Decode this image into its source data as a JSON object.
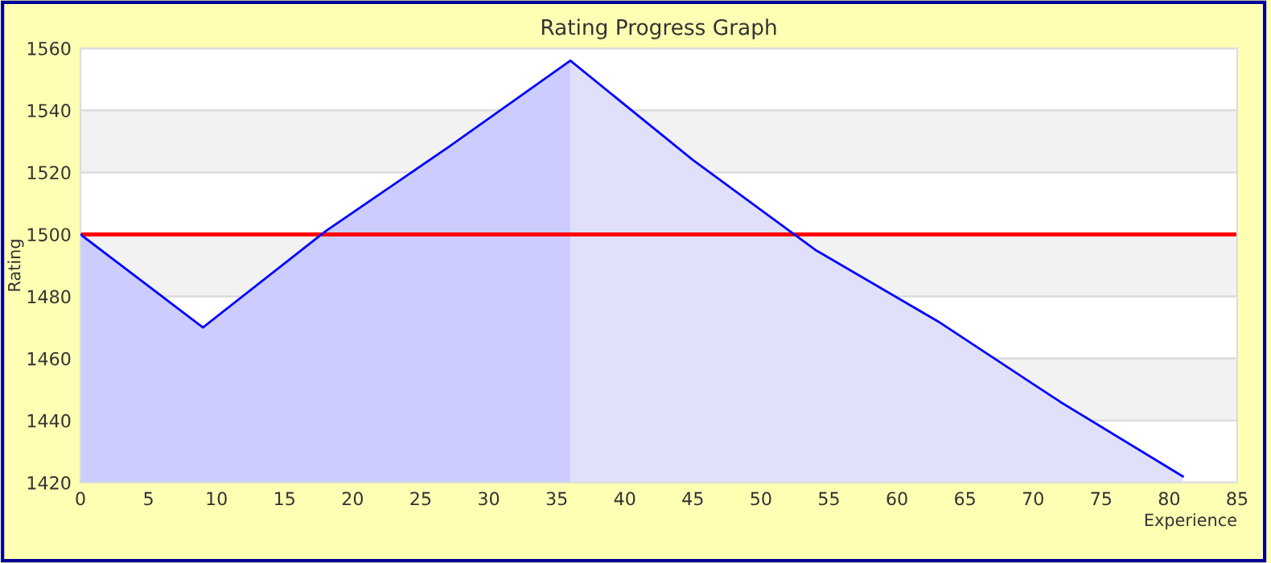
{
  "chart_data": {
    "type": "line",
    "title": "Rating Progress Graph",
    "xlabel": "Experience",
    "ylabel": "Rating",
    "series": [
      {
        "type": "area",
        "color": "#ccccff",
        "x": [
          0,
          9,
          18,
          27,
          36
        ],
        "values": [
          1500,
          1470,
          1501,
          1528,
          1556
        ]
      },
      {
        "type": "area",
        "color": "#e0e0fa",
        "x": [
          36,
          45,
          54,
          63,
          72,
          81
        ],
        "values": [
          1556,
          1524,
          1495,
          1472,
          1446,
          1422
        ]
      },
      {
        "color": "#0000ff",
        "x": [
          0,
          9,
          18,
          27,
          36,
          45,
          54,
          63,
          72,
          81
        ],
        "values": [
          1500,
          1470,
          1501,
          1528,
          1556,
          1524,
          1495,
          1472,
          1446,
          1422
        ]
      }
    ],
    "xlim": [
      0,
      85
    ],
    "xticks": [
      0,
      5,
      10,
      15,
      20,
      25,
      30,
      35,
      40,
      45,
      50,
      55,
      60,
      65,
      70,
      75,
      80,
      85
    ],
    "ylim": [
      1420,
      1560
    ],
    "yticks": [
      1420,
      1440,
      1460,
      1480,
      1500,
      1520,
      1540,
      1560
    ],
    "ref_lines": [
      {
        "axis": "y",
        "value": 1500,
        "color": "#ff0000"
      }
    ],
    "bands": [
      {
        "axis": "y",
        "from": 1520,
        "to": 1540,
        "color": "#f2f2f2"
      },
      {
        "axis": "y",
        "from": 1480,
        "to": 1500,
        "color": "#f2f2f2"
      },
      {
        "axis": "y",
        "from": 1440,
        "to": 1460,
        "color": "#f2f2f2"
      }
    ],
    "grid": "y",
    "legend": false
  }
}
